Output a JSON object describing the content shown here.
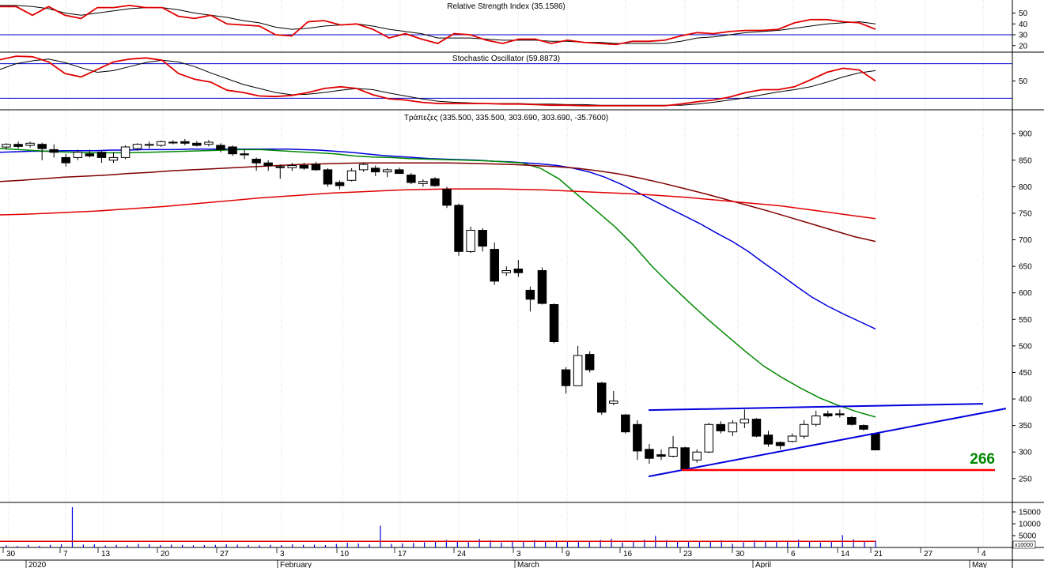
{
  "colors": {
    "red": "#e00000",
    "black": "#000000",
    "blue": "#0000dd",
    "green": "#008800",
    "darkred": "#800000",
    "guide": "#0000cc",
    "grid": "#c0c0c0",
    "support": "#ff0000",
    "annot": "#008800"
  },
  "chart_data": [
    {
      "type": "line",
      "title": "Relative Strength Index (35.1586)",
      "y_ticks": [
        "50",
        "40",
        "30",
        "20"
      ],
      "y_tick_values": [
        50,
        40,
        30,
        20
      ],
      "ylim": [
        14,
        62
      ],
      "guide_levels": [
        30
      ],
      "series": [
        {
          "color_key": "red",
          "values": [
            56,
            56,
            48,
            56,
            48,
            45,
            55,
            55,
            57,
            55,
            55,
            47,
            45,
            48,
            40,
            39,
            38,
            30,
            29,
            42,
            43,
            39,
            40,
            35,
            27,
            31,
            26,
            22,
            31,
            30,
            25,
            22,
            26,
            26,
            22,
            25,
            23,
            22,
            21,
            24,
            24,
            25,
            29,
            32,
            31,
            33,
            34,
            34,
            35,
            41,
            44,
            44,
            42,
            41,
            35
          ]
        },
        {
          "color_key": "black",
          "values": [
            57,
            57,
            56,
            54,
            50,
            48,
            50,
            52,
            54,
            55,
            55,
            53,
            50,
            48,
            46,
            43,
            41,
            37,
            35,
            36,
            38,
            39,
            40,
            38,
            35,
            33,
            31,
            27,
            27,
            27,
            26,
            25,
            25,
            25,
            24,
            24,
            23,
            23,
            22,
            22,
            22,
            22,
            24,
            27,
            28,
            30,
            32,
            33,
            34,
            36,
            38,
            40,
            41,
            42,
            40
          ]
        }
      ]
    },
    {
      "type": "line",
      "title": "Stochastic Oscillator (59.8873)",
      "y_ticks": [
        "50"
      ],
      "y_tick_values": [
        50
      ],
      "ylim": [
        0,
        100
      ],
      "guide_levels": [
        80,
        20
      ],
      "series": [
        {
          "color_key": "red",
          "values": [
            87,
            93,
            92,
            83,
            63,
            57,
            70,
            83,
            88,
            90,
            86,
            63,
            53,
            48,
            34,
            30,
            24,
            23,
            25,
            30,
            37,
            40,
            37,
            26,
            19,
            17,
            13,
            11,
            11,
            11,
            11,
            10,
            10,
            9,
            8,
            8,
            7,
            7,
            7,
            7,
            7,
            7,
            10,
            14,
            17,
            22,
            30,
            35,
            35,
            40,
            52,
            65,
            72,
            69,
            50
          ]
        },
        {
          "color_key": "black",
          "values": [
            70,
            80,
            85,
            88,
            82,
            73,
            65,
            68,
            75,
            82,
            86,
            83,
            75,
            64,
            54,
            44,
            37,
            30,
            26,
            27,
            30,
            34,
            37,
            35,
            29,
            24,
            19,
            15,
            13,
            12,
            11,
            11,
            11,
            10,
            10,
            9,
            9,
            8,
            8,
            8,
            8,
            8,
            8,
            10,
            13,
            17,
            21,
            26,
            31,
            35,
            40,
            48,
            57,
            64,
            68
          ]
        }
      ]
    },
    {
      "type": "candlestick",
      "title": "Τράπεζες (335.500, 335.500, 303.690, 303.690, -35.7600)",
      "y_ticks": [
        "900",
        "850",
        "800",
        "750",
        "700",
        "650",
        "600",
        "550",
        "500",
        "450",
        "400",
        "350",
        "300",
        "250"
      ],
      "y_tick_values": [
        900,
        850,
        800,
        750,
        700,
        650,
        600,
        550,
        500,
        450,
        400,
        350,
        300,
        250
      ],
      "ylim": [
        205,
        945
      ],
      "annotation": "266",
      "support_level": 266,
      "candles": [
        {
          "o": 875,
          "h": 882,
          "l": 870,
          "c": 880
        },
        {
          "o": 880,
          "h": 885,
          "l": 872,
          "c": 876
        },
        {
          "o": 878,
          "h": 885,
          "l": 874,
          "c": 882
        },
        {
          "o": 880,
          "h": 883,
          "l": 850,
          "c": 872
        },
        {
          "o": 870,
          "h": 880,
          "l": 855,
          "c": 865
        },
        {
          "o": 855,
          "h": 862,
          "l": 838,
          "c": 845
        },
        {
          "o": 855,
          "h": 870,
          "l": 850,
          "c": 865
        },
        {
          "o": 862,
          "h": 870,
          "l": 855,
          "c": 858
        },
        {
          "o": 865,
          "h": 868,
          "l": 845,
          "c": 855
        },
        {
          "o": 850,
          "h": 865,
          "l": 845,
          "c": 855
        },
        {
          "o": 855,
          "h": 878,
          "l": 852,
          "c": 875
        },
        {
          "o": 872,
          "h": 882,
          "l": 868,
          "c": 880
        },
        {
          "o": 878,
          "h": 885,
          "l": 872,
          "c": 880
        },
        {
          "o": 878,
          "h": 887,
          "l": 875,
          "c": 885
        },
        {
          "o": 883,
          "h": 888,
          "l": 880,
          "c": 884
        },
        {
          "o": 885,
          "h": 890,
          "l": 878,
          "c": 882
        },
        {
          "o": 882,
          "h": 886,
          "l": 876,
          "c": 878
        },
        {
          "o": 880,
          "h": 888,
          "l": 876,
          "c": 884
        },
        {
          "o": 878,
          "h": 882,
          "l": 865,
          "c": 870
        },
        {
          "o": 875,
          "h": 878,
          "l": 858,
          "c": 862
        },
        {
          "o": 862,
          "h": 870,
          "l": 852,
          "c": 860
        },
        {
          "o": 852,
          "h": 855,
          "l": 830,
          "c": 845
        },
        {
          "o": 845,
          "h": 850,
          "l": 830,
          "c": 840
        },
        {
          "o": 838,
          "h": 842,
          "l": 815,
          "c": 836
        },
        {
          "o": 836,
          "h": 845,
          "l": 830,
          "c": 840
        },
        {
          "o": 840,
          "h": 845,
          "l": 832,
          "c": 835
        },
        {
          "o": 842,
          "h": 847,
          "l": 830,
          "c": 832
        },
        {
          "o": 832,
          "h": 835,
          "l": 800,
          "c": 805
        },
        {
          "o": 808,
          "h": 812,
          "l": 795,
          "c": 802
        },
        {
          "o": 812,
          "h": 835,
          "l": 810,
          "c": 830
        },
        {
          "o": 832,
          "h": 845,
          "l": 828,
          "c": 842
        },
        {
          "o": 835,
          "h": 840,
          "l": 820,
          "c": 828
        },
        {
          "o": 828,
          "h": 835,
          "l": 818,
          "c": 832
        },
        {
          "o": 832,
          "h": 836,
          "l": 825,
          "c": 825
        },
        {
          "o": 822,
          "h": 826,
          "l": 805,
          "c": 808
        },
        {
          "o": 806,
          "h": 814,
          "l": 800,
          "c": 810
        },
        {
          "o": 815,
          "h": 818,
          "l": 800,
          "c": 802
        },
        {
          "o": 795,
          "h": 800,
          "l": 760,
          "c": 765
        },
        {
          "o": 765,
          "h": 768,
          "l": 670,
          "c": 678
        },
        {
          "o": 678,
          "h": 725,
          "l": 675,
          "c": 718
        },
        {
          "o": 718,
          "h": 722,
          "l": 678,
          "c": 688
        },
        {
          "o": 682,
          "h": 695,
          "l": 615,
          "c": 622
        },
        {
          "o": 638,
          "h": 650,
          "l": 632,
          "c": 642
        },
        {
          "o": 645,
          "h": 662,
          "l": 630,
          "c": 638
        },
        {
          "o": 605,
          "h": 612,
          "l": 565,
          "c": 588
        },
        {
          "o": 642,
          "h": 648,
          "l": 578,
          "c": 580
        },
        {
          "o": 578,
          "h": 580,
          "l": 505,
          "c": 508
        },
        {
          "o": 455,
          "h": 460,
          "l": 410,
          "c": 425
        },
        {
          "o": 425,
          "h": 500,
          "l": 425,
          "c": 482
        },
        {
          "o": 484,
          "h": 490,
          "l": 450,
          "c": 455
        },
        {
          "o": 430,
          "h": 432,
          "l": 370,
          "c": 375
        },
        {
          "o": 392,
          "h": 415,
          "l": 388,
          "c": 396
        },
        {
          "o": 370,
          "h": 372,
          "l": 335,
          "c": 338
        },
        {
          "o": 352,
          "h": 360,
          "l": 285,
          "c": 302
        },
        {
          "o": 305,
          "h": 315,
          "l": 278,
          "c": 288
        },
        {
          "o": 295,
          "h": 305,
          "l": 285,
          "c": 292
        },
        {
          "o": 292,
          "h": 330,
          "l": 290,
          "c": 308
        },
        {
          "o": 308,
          "h": 310,
          "l": 266,
          "c": 268
        },
        {
          "o": 285,
          "h": 305,
          "l": 280,
          "c": 300
        },
        {
          "o": 300,
          "h": 355,
          "l": 298,
          "c": 352
        },
        {
          "o": 352,
          "h": 358,
          "l": 335,
          "c": 340
        },
        {
          "o": 338,
          "h": 360,
          "l": 330,
          "c": 355
        },
        {
          "o": 355,
          "h": 380,
          "l": 345,
          "c": 362
        },
        {
          "o": 362,
          "h": 364,
          "l": 328,
          "c": 330
        },
        {
          "o": 332,
          "h": 340,
          "l": 310,
          "c": 315
        },
        {
          "o": 318,
          "h": 320,
          "l": 305,
          "c": 312
        },
        {
          "o": 320,
          "h": 335,
          "l": 318,
          "c": 330
        },
        {
          "o": 330,
          "h": 360,
          "l": 325,
          "c": 352
        },
        {
          "o": 352,
          "h": 378,
          "l": 348,
          "c": 368
        },
        {
          "o": 372,
          "h": 378,
          "l": 365,
          "c": 368
        },
        {
          "o": 372,
          "h": 380,
          "l": 365,
          "c": 370
        },
        {
          "o": 365,
          "h": 368,
          "l": 350,
          "c": 352
        },
        {
          "o": 350,
          "h": 352,
          "l": 340,
          "c": 343
        },
        {
          "o": 335,
          "h": 336,
          "l": 303,
          "c": 304
        }
      ],
      "series": [
        {
          "name": "",
          "color_key": "blue",
          "values": [
            865,
            866,
            867,
            867,
            868,
            868,
            868,
            869,
            869,
            870,
            870,
            870,
            871,
            871,
            871,
            871,
            871,
            871,
            871,
            870,
            869,
            867,
            865,
            862,
            859,
            857,
            855,
            853,
            852,
            851,
            850,
            848,
            847,
            845,
            843,
            840,
            835,
            828,
            818,
            805,
            790,
            775,
            760,
            745,
            730,
            713,
            697,
            678,
            656,
            635,
            613,
            592,
            575,
            560,
            546,
            532
          ]
        },
        {
          "name": "",
          "color_key": "green",
          "values": [
            872,
            870,
            868,
            866,
            865,
            864,
            864,
            864,
            865,
            866,
            867,
            868,
            869,
            870,
            870,
            868,
            866,
            864,
            862,
            858,
            856,
            855,
            853,
            852,
            851,
            850,
            849,
            847,
            845,
            835,
            815,
            785,
            755,
            725,
            690,
            650,
            615,
            582,
            550,
            520,
            490,
            462,
            440,
            420,
            402,
            388,
            376,
            366
          ]
        },
        {
          "name": "",
          "color_key": "darkred",
          "values": [
            810,
            812,
            815,
            818,
            820,
            822,
            825,
            827,
            830,
            832,
            834,
            836,
            838,
            840,
            842,
            843,
            844,
            845,
            845,
            845,
            845,
            845,
            844,
            843,
            842,
            840,
            838,
            835,
            830,
            824,
            816,
            807,
            797,
            787,
            776,
            765,
            754,
            742,
            730,
            718,
            706,
            697
          ]
        },
        {
          "name": "",
          "color_key": "red",
          "values": [
            747,
            748,
            750,
            752,
            754,
            757,
            760,
            763,
            767,
            771,
            775,
            779,
            782,
            785,
            788,
            790,
            792,
            794,
            795,
            796,
            796,
            796,
            795,
            794,
            792,
            790,
            788,
            786,
            783,
            780,
            776,
            772,
            768,
            764,
            758,
            752,
            746,
            740
          ]
        }
      ]
    },
    {
      "type": "bar",
      "title": "",
      "y_ticks": [
        "15000",
        "10000",
        "5000"
      ],
      "y_tick_values": [
        15000,
        10000,
        5000
      ],
      "ylim": [
        0,
        19000
      ],
      "y_multiplier": "x10000",
      "ma_value": 2600,
      "values": [
        900,
        600,
        1000,
        700,
        1100,
        1400,
        17000,
        1200,
        1300,
        800,
        1100,
        900,
        1500,
        1400,
        1000,
        1200,
        1100,
        900,
        1000,
        1100,
        1300,
        1200,
        1000,
        900,
        1100,
        1000,
        1300,
        1100,
        1200,
        1000,
        1500,
        2000,
        1700,
        1300,
        9200,
        1500,
        1700,
        1900,
        2200,
        2800,
        3200,
        2700,
        2300,
        3600,
        3100,
        2100,
        2900,
        2500,
        3100,
        2600,
        2700,
        2500,
        2900,
        2800,
        3200,
        3700,
        2100,
        2500,
        3300,
        4900,
        3100,
        2600,
        2300,
        2600,
        2800,
        3000,
        1600,
        2200,
        3100,
        2800,
        2300,
        2900,
        3300,
        2700,
        2100,
        2500,
        5200,
        3500,
        2600,
        2900
      ]
    }
  ],
  "x_axis": {
    "day_labels": [
      "30",
      "7",
      "13",
      "20",
      "27",
      "3",
      "10",
      "17",
      "24",
      "3",
      "9",
      "16",
      "23",
      "30",
      "6",
      "14",
      "21",
      "27",
      "4"
    ],
    "month_labels": [
      "2020",
      "February",
      "March",
      "April",
      "May"
    ]
  }
}
